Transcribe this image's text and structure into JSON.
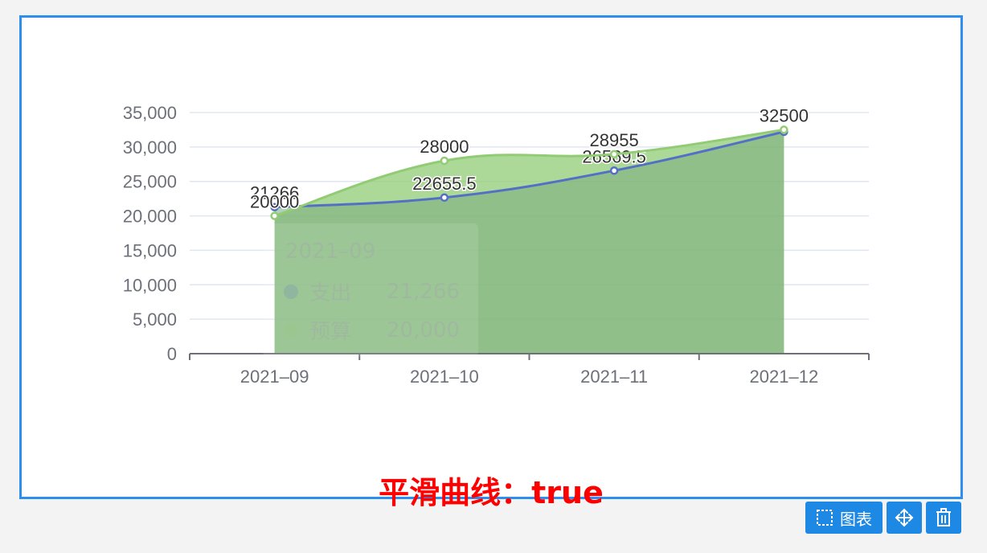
{
  "subtitle": "平滑曲线：true",
  "toolbar": {
    "chart_label": "图表",
    "chart_icon": "frame-select-icon",
    "move_icon": "move-arrows-icon",
    "delete_icon": "trash-icon"
  },
  "tooltip": {
    "title": "2021–09",
    "rows": [
      {
        "name": "支出",
        "value": "21,266",
        "color": "#5470c6"
      },
      {
        "name": "预算",
        "value": "20,000",
        "color": "#91cc75"
      }
    ]
  },
  "chart_data": {
    "type": "area",
    "smooth": true,
    "categories": [
      "2021–09",
      "2021–10",
      "2021–11",
      "2021–12"
    ],
    "y_ticks": [
      "0",
      "5,000",
      "10,000",
      "15,000",
      "20,000",
      "25,000",
      "30,000",
      "35,000"
    ],
    "ylim": [
      0,
      35000
    ],
    "grid": true,
    "series": [
      {
        "name": "支出",
        "values": [
          21266,
          22655.5,
          26569.5,
          32200
        ],
        "labels": [
          "21266",
          "22655.5",
          "26569.5",
          ""
        ],
        "color": "#5470c6"
      },
      {
        "name": "预算",
        "values": [
          20000,
          28000,
          28955,
          32500
        ],
        "labels": [
          "20000",
          "28000",
          "28955",
          "32500"
        ],
        "color": "#91cc75"
      }
    ]
  }
}
